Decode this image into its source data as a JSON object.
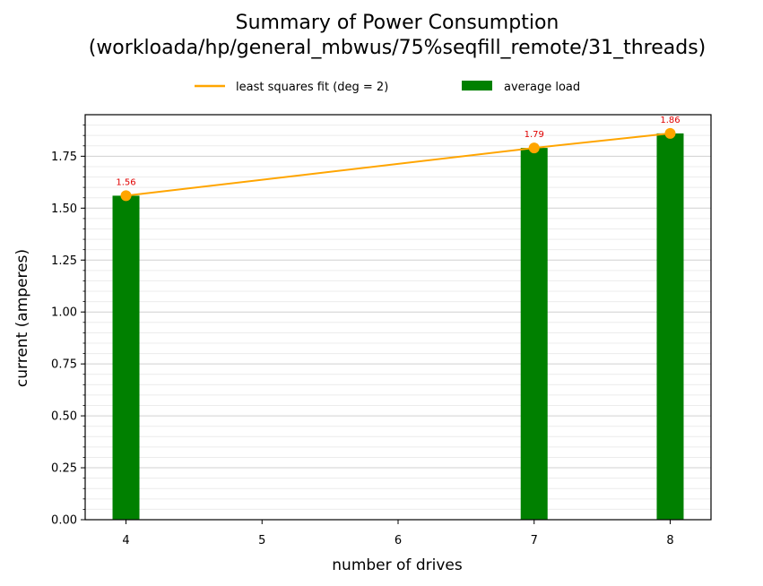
{
  "chart_data": {
    "type": "bar",
    "title_line1": "Summary of Power Consumption",
    "title_line2": "(workloada/hp/general_mbwus/75%seqfill_remote/31_threads)",
    "xlabel": "number of drives",
    "ylabel": "current (amperes)",
    "x_ticks": [
      "4",
      "5",
      "6",
      "7",
      "8"
    ],
    "y_ticks": [
      "0.00",
      "0.25",
      "0.50",
      "0.75",
      "1.00",
      "1.25",
      "1.50",
      "1.75"
    ],
    "xlim": [
      3.7,
      8.3
    ],
    "ylim": [
      0,
      1.95
    ],
    "grid": true,
    "legend_placement": "top-center",
    "series": [
      {
        "name": "average load",
        "kind": "bar",
        "color": "#008000",
        "x": [
          4,
          7,
          8
        ],
        "values": [
          1.56,
          1.79,
          1.86
        ],
        "labels": [
          "1.56",
          "1.79",
          "1.86"
        ]
      },
      {
        "name": "least squares fit (deg = 2)",
        "kind": "line",
        "color": "#FFA500",
        "x": [
          4,
          7,
          8
        ],
        "values": [
          1.56,
          1.79,
          1.86
        ]
      }
    ]
  }
}
